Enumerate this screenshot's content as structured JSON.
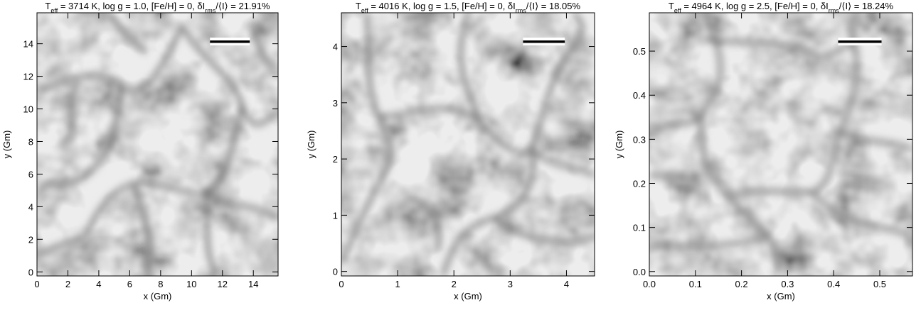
{
  "chart_data": [
    {
      "type": "image",
      "title": [
        {
          "text": "T",
          "sub": false
        },
        {
          "text": "eff",
          "sub": true
        },
        {
          "text": " = 3714 K, log g = 1.0, [Fe/H] = 0, δI",
          "sub": false
        },
        {
          "text": "rms",
          "sub": true
        },
        {
          "text": "/⟨I⟩ = 21.91%",
          "sub": false
        }
      ],
      "xlabel": "x (Gm)",
      "ylabel": "y (Gm)",
      "xlim": [
        0,
        15.6
      ],
      "ylim": [
        -0.25,
        15.9
      ],
      "xticks": [
        0,
        2,
        4,
        6,
        8,
        10,
        12,
        14
      ],
      "yticks": [
        0,
        2,
        4,
        6,
        8,
        10,
        12,
        14
      ]
    },
    {
      "type": "image",
      "title": [
        {
          "text": "T",
          "sub": false
        },
        {
          "text": "eff",
          "sub": true
        },
        {
          "text": " = 4016 K, log g = 1.5, [Fe/H] = 0, δI",
          "sub": false
        },
        {
          "text": "rms",
          "sub": true
        },
        {
          "text": "/⟨I⟩ = 18.05%",
          "sub": false
        }
      ],
      "xlabel": "x (Gm)",
      "ylabel": "y (Gm)",
      "xlim": [
        0,
        4.5
      ],
      "ylim": [
        -0.08,
        4.6
      ],
      "xticks": [
        0,
        1,
        2,
        3,
        4
      ],
      "yticks": [
        0,
        1,
        2,
        3,
        4
      ]
    },
    {
      "type": "image",
      "title": [
        {
          "text": "T",
          "sub": false
        },
        {
          "text": "eff",
          "sub": true
        },
        {
          "text": " = 4964 K, log g = 2.5, [Fe/H] = 0, δI",
          "sub": false
        },
        {
          "text": "rms",
          "sub": true
        },
        {
          "text": "/⟨I⟩ = 18.24%",
          "sub": false
        }
      ],
      "xlabel": "x (Gm)",
      "ylabel": "y (Gm)",
      "xlim": [
        0,
        0.571
      ],
      "ylim": [
        -0.01,
        0.587
      ],
      "xticks": [
        {
          "value": 0,
          "label": "0.0"
        },
        0.1,
        0.2,
        0.3,
        0.4,
        0.5
      ],
      "yticks": [
        {
          "value": 0,
          "label": "0.0"
        },
        0.1,
        0.2,
        0.3,
        0.4,
        0.5
      ]
    }
  ]
}
